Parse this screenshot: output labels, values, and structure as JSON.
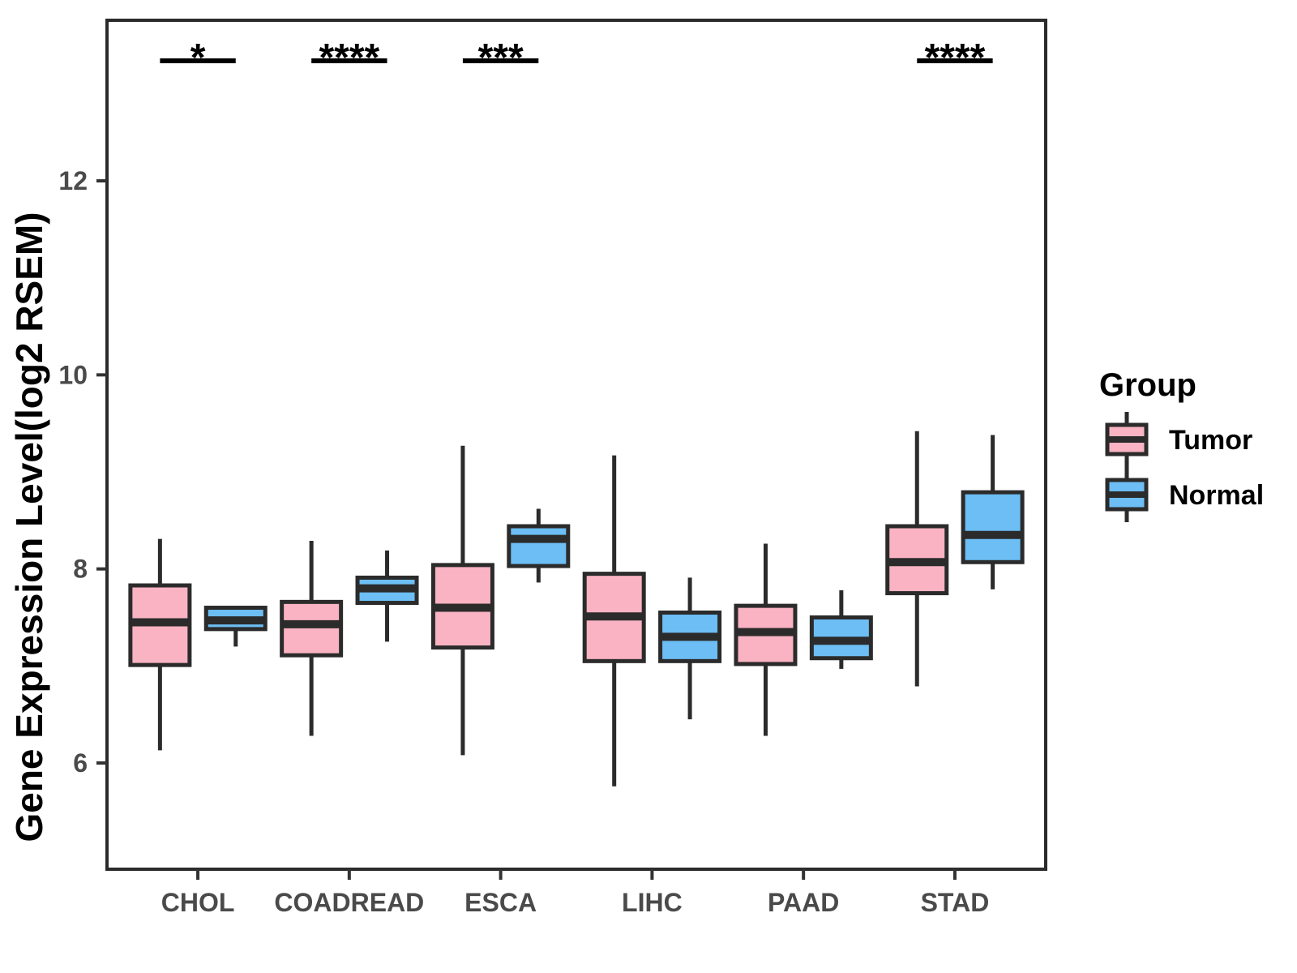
{
  "figure": {
    "background": "#FFFFFF",
    "colors": {
      "tumor_fill": "#F9B3C2",
      "normal_fill": "#6CBEF4",
      "box_stroke": "#2B2B2B",
      "axis_text": "#4A4A4A",
      "title_text": "#000000",
      "tick_mark": "#333333",
      "panel_border": "#2B2B2B",
      "significance": "#000000"
    }
  },
  "chart_data": {
    "type": "grouped_boxplot",
    "title": "",
    "xlabel": "",
    "ylabel": "Gene Expression Level(log2 RSEM)",
    "categories": [
      "CHOL",
      "COADREAD",
      "ESCA",
      "LIHC",
      "PAAD",
      "STAD"
    ],
    "groups": [
      "Tumor",
      "Normal"
    ],
    "legend_title": "Group",
    "legend_position": "right",
    "grid": false,
    "y_ticks": [
      6,
      8,
      10,
      12
    ],
    "ylim": [
      4.905,
      13.655
    ],
    "significance": [
      {
        "category": "CHOL",
        "label": "*"
      },
      {
        "category": "COADREAD",
        "label": "****"
      },
      {
        "category": "ESCA",
        "label": "***"
      },
      {
        "category": "STAD",
        "label": "****"
      }
    ],
    "series": [
      {
        "name": "Tumor",
        "color": "#F9B3C2",
        "boxes": [
          {
            "category": "CHOL",
            "min": 6.13,
            "q1": 7.01,
            "median": 7.45,
            "q3": 7.83,
            "max": 8.31
          },
          {
            "category": "COADREAD",
            "min": 6.28,
            "q1": 7.11,
            "median": 7.43,
            "q3": 7.66,
            "max": 8.29
          },
          {
            "category": "ESCA",
            "min": 6.08,
            "q1": 7.19,
            "median": 7.6,
            "q3": 8.04,
            "max": 9.27
          },
          {
            "category": "LIHC",
            "min": 5.76,
            "q1": 7.05,
            "median": 7.51,
            "q3": 7.95,
            "max": 9.17
          },
          {
            "category": "PAAD",
            "min": 6.28,
            "q1": 7.02,
            "median": 7.35,
            "q3": 7.62,
            "max": 8.26
          },
          {
            "category": "STAD",
            "min": 6.79,
            "q1": 7.75,
            "median": 8.07,
            "q3": 8.44,
            "max": 9.42
          }
        ]
      },
      {
        "name": "Normal",
        "color": "#6CBEF4",
        "boxes": [
          {
            "category": "CHOL",
            "min": 7.2,
            "q1": 7.38,
            "median": 7.47,
            "q3": 7.6,
            "max": 7.61
          },
          {
            "category": "COADREAD",
            "min": 7.25,
            "q1": 7.65,
            "median": 7.8,
            "q3": 7.91,
            "max": 8.19
          },
          {
            "category": "ESCA",
            "min": 7.86,
            "q1": 8.03,
            "median": 8.31,
            "q3": 8.44,
            "max": 8.62
          },
          {
            "category": "LIHC",
            "min": 6.45,
            "q1": 7.05,
            "median": 7.3,
            "q3": 7.55,
            "max": 7.91
          },
          {
            "category": "PAAD",
            "min": 6.97,
            "q1": 7.08,
            "median": 7.26,
            "q3": 7.5,
            "max": 7.78
          },
          {
            "category": "STAD",
            "min": 7.79,
            "q1": 8.07,
            "median": 8.35,
            "q3": 8.79,
            "max": 9.38
          }
        ]
      }
    ]
  }
}
